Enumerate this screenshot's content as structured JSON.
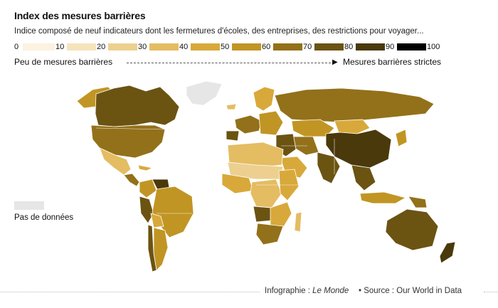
{
  "title": "Index des mesures barrières",
  "subtitle": "Indice composé de neuf indicateurs dont les fermetures d'écoles, des entreprises, des restrictions pour voyager...",
  "legend": {
    "ticks": [
      "0",
      "10",
      "20",
      "30",
      "40",
      "50",
      "60",
      "70",
      "80",
      "90",
      "100"
    ],
    "colors": [
      "#fbf2df",
      "#f5e3bc",
      "#edd08f",
      "#e4bc62",
      "#d8a93a",
      "#c19524",
      "#93711a",
      "#6b5312",
      "#4a390b",
      "#000000"
    ]
  },
  "scale": {
    "low": "Peu de mesures barrières",
    "high": "Mesures barrières strictes"
  },
  "no_data": {
    "label": "Pas de données",
    "color": "#e6e6e6"
  },
  "credit": {
    "prefix": "Infographie : ",
    "magazine": "Le Monde"
  },
  "source": "• Source : Our World in Data",
  "map_data": {
    "regions": [
      {
        "name": "Alaska",
        "value": 50
      },
      {
        "name": "Canada",
        "value": 70
      },
      {
        "name": "Greenland",
        "value": null
      },
      {
        "name": "United States",
        "value": 60
      },
      {
        "name": "Mexico",
        "value": 30
      },
      {
        "name": "Central America",
        "value": 60
      },
      {
        "name": "Cuba",
        "value": 40
      },
      {
        "name": "Colombia",
        "value": 50
      },
      {
        "name": "Venezuela",
        "value": 80
      },
      {
        "name": "Peru",
        "value": 70
      },
      {
        "name": "Brazil",
        "value": 50
      },
      {
        "name": "Bolivia",
        "value": 40
      },
      {
        "name": "Argentina",
        "value": 50
      },
      {
        "name": "Chile",
        "value": 70
      },
      {
        "name": "Iceland",
        "value": 30
      },
      {
        "name": "Scandinavia",
        "value": 40
      },
      {
        "name": "Western Europe",
        "value": 60
      },
      {
        "name": "Spain",
        "value": 70
      },
      {
        "name": "Eastern Europe",
        "value": 50
      },
      {
        "name": "Russia",
        "value": 60
      },
      {
        "name": "Kazakhstan",
        "value": 50
      },
      {
        "name": "Central Asia",
        "value": 60
      },
      {
        "name": "Mongolia",
        "value": 40
      },
      {
        "name": "China",
        "value": 80
      },
      {
        "name": "Middle East",
        "value": 70
      },
      {
        "name": "Arabian Peninsula",
        "value": 40
      },
      {
        "name": "India",
        "value": 70
      },
      {
        "name": "Southeast Asia",
        "value": 70
      },
      {
        "name": "Indonesia",
        "value": 50
      },
      {
        "name": "Japan",
        "value": 50
      },
      {
        "name": "North Africa",
        "value": 30
      },
      {
        "name": "Sahel",
        "value": 20
      },
      {
        "name": "West Africa",
        "value": 40
      },
      {
        "name": "Central Africa",
        "value": 30
      },
      {
        "name": "East Africa",
        "value": 40
      },
      {
        "name": "Angola",
        "value": 70
      },
      {
        "name": "Southern Africa",
        "value": 40
      },
      {
        "name": "South Africa",
        "value": 60
      },
      {
        "name": "Madagascar",
        "value": 30
      },
      {
        "name": "Australia",
        "value": 70
      },
      {
        "name": "New Zealand",
        "value": 80
      },
      {
        "name": "Papua New Guinea",
        "value": 60
      }
    ]
  }
}
